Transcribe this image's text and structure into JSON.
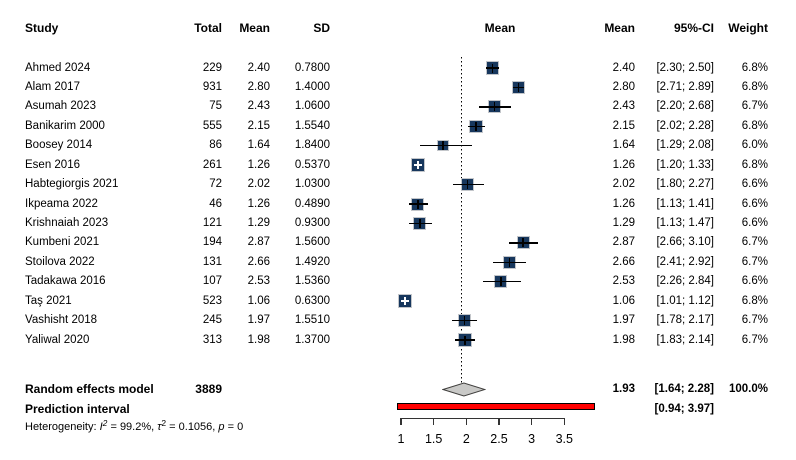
{
  "columns": {
    "study": "Study",
    "total": "Total",
    "mean": "Mean",
    "sd": "SD",
    "plot_header": "Mean",
    "mean_right": "Mean",
    "ci": "95%-CI",
    "weight": "Weight"
  },
  "chart_data": {
    "type": "scatter",
    "subtype": "forest-plot-meta-analysis",
    "x_axis": {
      "tick_labels": [
        "1",
        "1.5",
        "2",
        "2.5",
        "3",
        "3.5"
      ],
      "tick_values": [
        1,
        1.5,
        2,
        2.5,
        3,
        3.5
      ],
      "range": [
        1,
        3.5
      ]
    },
    "reference_line_x": 1.93,
    "legend_position": "none",
    "grid": false,
    "studies": [
      {
        "study": "Ahmed 2024",
        "total": "229",
        "sd": "0.7800",
        "mean": "2.40",
        "mean_val": 2.4,
        "ci_low": 2.3,
        "ci_high": 2.5,
        "ci_label": "[2.30; 2.50]",
        "weight": "6.8%",
        "weight_val": 6.8
      },
      {
        "study": "Alam 2017",
        "total": "931",
        "sd": "1.4000",
        "mean": "2.80",
        "mean_val": 2.8,
        "ci_low": 2.71,
        "ci_high": 2.89,
        "ci_label": "[2.71; 2.89]",
        "weight": "6.8%",
        "weight_val": 6.8
      },
      {
        "study": "Asumah 2023",
        "total": "75",
        "sd": "1.0600",
        "mean": "2.43",
        "mean_val": 2.43,
        "ci_low": 2.2,
        "ci_high": 2.68,
        "ci_label": "[2.20; 2.68]",
        "weight": "6.7%",
        "weight_val": 6.7
      },
      {
        "study": "Banikarim 2000",
        "total": "555",
        "sd": "1.5540",
        "mean": "2.15",
        "mean_val": 2.15,
        "ci_low": 2.02,
        "ci_high": 2.28,
        "ci_label": "[2.02; 2.28]",
        "weight": "6.8%",
        "weight_val": 6.8
      },
      {
        "study": "Boosey 2014",
        "total": "86",
        "sd": "1.8400",
        "mean": "1.64",
        "mean_val": 1.64,
        "ci_low": 1.29,
        "ci_high": 2.08,
        "ci_label": "[1.29; 2.08]",
        "weight": "6.0%",
        "weight_val": 6.0
      },
      {
        "study": "Esen 2016",
        "total": "261",
        "sd": "0.5370",
        "mean": "1.26",
        "mean_val": 1.26,
        "ci_low": 1.2,
        "ci_high": 1.33,
        "ci_label": "[1.20; 1.33]",
        "weight": "6.8%",
        "weight_val": 6.8
      },
      {
        "study": "Habtegiorgis 2021",
        "total": "72",
        "sd": "1.0300",
        "mean": "2.02",
        "mean_val": 2.02,
        "ci_low": 1.8,
        "ci_high": 2.27,
        "ci_label": "[1.80; 2.27]",
        "weight": "6.6%",
        "weight_val": 6.6
      },
      {
        "study": "Ikpeama 2022",
        "total": "46",
        "sd": "0.4890",
        "mean": "1.26",
        "mean_val": 1.26,
        "ci_low": 1.13,
        "ci_high": 1.41,
        "ci_label": "[1.13; 1.41]",
        "weight": "6.6%",
        "weight_val": 6.6
      },
      {
        "study": "Krishnaiah 2023",
        "total": "121",
        "sd": "0.9300",
        "mean": "1.29",
        "mean_val": 1.29,
        "ci_low": 1.13,
        "ci_high": 1.47,
        "ci_label": "[1.13; 1.47]",
        "weight": "6.6%",
        "weight_val": 6.6
      },
      {
        "study": "Kumbeni 2021",
        "total": "194",
        "sd": "1.5600",
        "mean": "2.87",
        "mean_val": 2.87,
        "ci_low": 2.66,
        "ci_high": 3.1,
        "ci_label": "[2.66; 3.10]",
        "weight": "6.7%",
        "weight_val": 6.7
      },
      {
        "study": "Stoilova 2022",
        "total": "131",
        "sd": "1.4920",
        "mean": "2.66",
        "mean_val": 2.66,
        "ci_low": 2.41,
        "ci_high": 2.92,
        "ci_label": "[2.41; 2.92]",
        "weight": "6.7%",
        "weight_val": 6.7
      },
      {
        "study": "Tadakawa 2016",
        "total": "107",
        "sd": "1.5360",
        "mean": "2.53",
        "mean_val": 2.53,
        "ci_low": 2.26,
        "ci_high": 2.84,
        "ci_label": "[2.26; 2.84]",
        "weight": "6.6%",
        "weight_val": 6.6
      },
      {
        "study": "Taş 2021",
        "total": "523",
        "sd": "0.6300",
        "mean": "1.06",
        "mean_val": 1.06,
        "ci_low": 1.01,
        "ci_high": 1.12,
        "ci_label": "[1.01; 1.12]",
        "weight": "6.8%",
        "weight_val": 6.8
      },
      {
        "study": "Vashisht 2018",
        "total": "245",
        "sd": "1.5510",
        "mean": "1.97",
        "mean_val": 1.97,
        "ci_low": 1.78,
        "ci_high": 2.17,
        "ci_label": "[1.78; 2.17]",
        "weight": "6.7%",
        "weight_val": 6.7
      },
      {
        "study": "Yaliwal 2020",
        "total": "313",
        "sd": "1.3700",
        "mean": "1.98",
        "mean_val": 1.98,
        "ci_low": 1.83,
        "ci_high": 2.14,
        "ci_label": "[1.83; 2.14]",
        "weight": "6.7%",
        "weight_val": 6.7
      }
    ],
    "summary_row": {
      "label": "Random effects model",
      "total": "3889",
      "mean": "1.93",
      "mean_val": 1.93,
      "ci_low": 1.64,
      "ci_high": 2.28,
      "ci_label": "[1.64; 2.28]",
      "weight": "100.0%"
    },
    "prediction_row": {
      "label": "Prediction interval",
      "ci_low": 0.94,
      "ci_high": 3.97,
      "ci_label": "[0.94; 3.97]"
    },
    "heterogeneity": {
      "parts": [
        {
          "text": "Heterogeneity: "
        },
        {
          "text": "I",
          "italic": true
        },
        {
          "text": "2",
          "sup": true,
          "italic": true
        },
        {
          "text": " = 99.2%, "
        },
        {
          "text": "τ",
          "italic": true
        },
        {
          "text": "2",
          "sup": true
        },
        {
          "text": " = 0.1056, "
        },
        {
          "text": "p",
          "italic": true
        },
        {
          "text": " = 0"
        }
      ]
    }
  },
  "colors": {
    "background": "#ffffff",
    "text": "#000000",
    "square_fill": "#17375d",
    "square_border": "#c3c6ca",
    "ci_line": "#000000",
    "inside_marker": "#ffffff",
    "diamond_fill": "#c9c9c7",
    "diamond_border": "#403f3d",
    "prediction_fill": "#ff0000",
    "prediction_border": "#000000",
    "reference_line": "#000000",
    "axis": "#333333"
  }
}
